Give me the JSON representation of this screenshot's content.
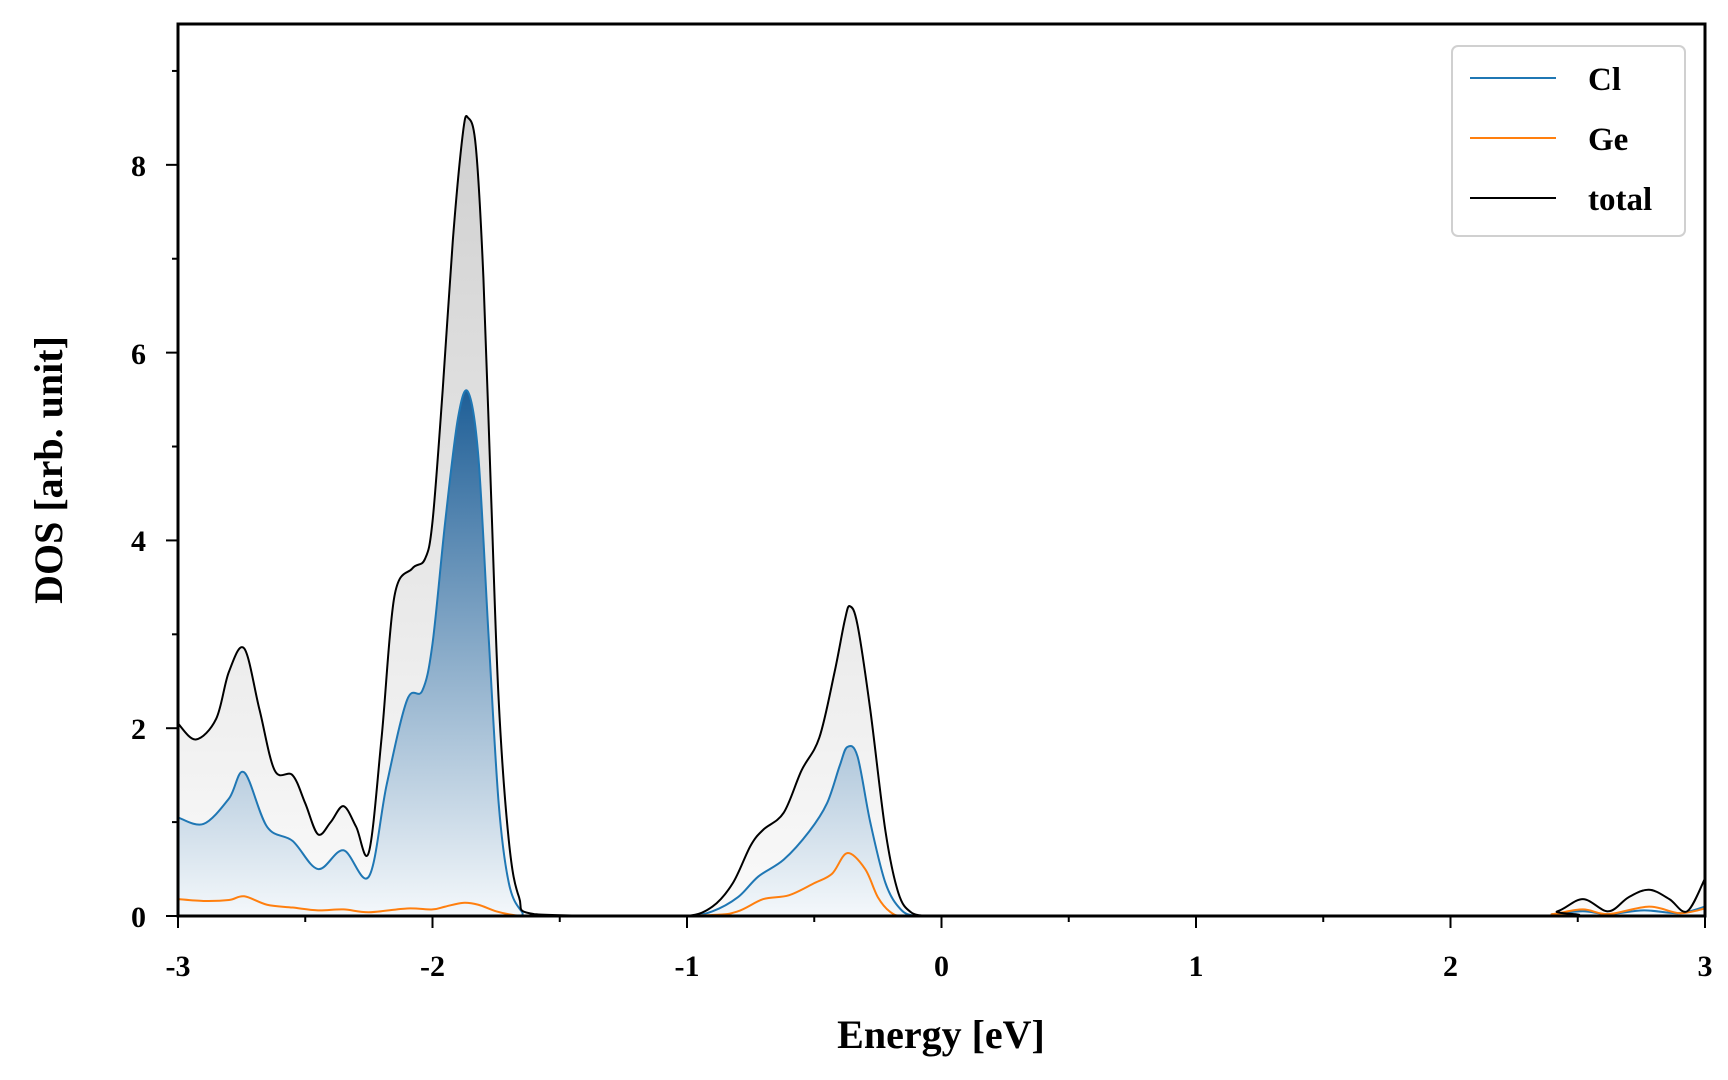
{
  "chart_data": {
    "type": "area",
    "xlabel": "Energy [eV]",
    "ylabel": "DOS [arb. unit]",
    "xlim": [
      -3,
      3
    ],
    "ylim": [
      0,
      9.5
    ],
    "x_ticks": [
      "-3",
      "-2",
      "-1",
      "0",
      "1",
      "2",
      "3"
    ],
    "y_ticks": [
      "0",
      "2",
      "4",
      "6",
      "8"
    ],
    "legend_position": "top-right",
    "grid": false,
    "series": [
      {
        "name": "Cl",
        "color": "#1f77b4",
        "fill": "blue-gradient",
        "x": [
          -3.0,
          -2.9,
          -2.8,
          -2.74,
          -2.65,
          -2.55,
          -2.45,
          -2.35,
          -2.25,
          -2.18,
          -2.1,
          -2.04,
          -2.0,
          -1.95,
          -1.9,
          -1.86,
          -1.82,
          -1.78,
          -1.74,
          -1.7,
          -1.65,
          -1.6,
          -1.2,
          -1.0,
          -0.9,
          -0.8,
          -0.72,
          -0.62,
          -0.52,
          -0.45,
          -0.4,
          -0.37,
          -0.33,
          -0.28,
          -0.22,
          -0.16,
          -0.1,
          0.0,
          2.3,
          2.4,
          2.52,
          2.62,
          2.76,
          2.9,
          3.0
        ],
        "y": [
          1.05,
          0.98,
          1.25,
          1.53,
          0.95,
          0.8,
          0.5,
          0.7,
          0.42,
          1.4,
          2.3,
          2.4,
          2.9,
          4.2,
          5.3,
          5.58,
          4.9,
          3.0,
          1.2,
          0.35,
          0.05,
          0.0,
          0.0,
          0.0,
          0.05,
          0.2,
          0.42,
          0.6,
          0.9,
          1.2,
          1.6,
          1.8,
          1.7,
          1.0,
          0.35,
          0.07,
          0.0,
          0.0,
          0.0,
          0.02,
          0.05,
          0.02,
          0.06,
          0.03,
          0.1
        ]
      },
      {
        "name": "Ge",
        "color": "#ff7f0e",
        "x": [
          -3.0,
          -2.9,
          -2.8,
          -2.74,
          -2.65,
          -2.55,
          -2.45,
          -2.35,
          -2.25,
          -2.1,
          -2.0,
          -1.95,
          -1.88,
          -1.82,
          -1.75,
          -1.68,
          -1.6,
          -1.2,
          -0.9,
          -0.8,
          -0.7,
          -0.6,
          -0.5,
          -0.43,
          -0.37,
          -0.3,
          -0.25,
          -0.2,
          -0.15,
          0.0,
          2.3,
          2.4,
          2.52,
          2.62,
          2.78,
          2.9,
          3.0
        ],
        "y": [
          0.18,
          0.16,
          0.17,
          0.21,
          0.12,
          0.09,
          0.06,
          0.07,
          0.04,
          0.08,
          0.07,
          0.1,
          0.14,
          0.12,
          0.05,
          0.01,
          0.0,
          0.0,
          0.01,
          0.05,
          0.18,
          0.22,
          0.35,
          0.45,
          0.67,
          0.5,
          0.2,
          0.04,
          0.0,
          0.0,
          0.0,
          0.02,
          0.07,
          0.02,
          0.1,
          0.03,
          0.08
        ]
      },
      {
        "name": "total",
        "color": "#000000",
        "fill": "grey-gradient",
        "x": [
          -3.0,
          -2.93,
          -2.85,
          -2.8,
          -2.74,
          -2.68,
          -2.62,
          -2.55,
          -2.5,
          -2.45,
          -2.4,
          -2.35,
          -2.3,
          -2.25,
          -2.2,
          -2.15,
          -2.08,
          -2.03,
          -2.0,
          -1.96,
          -1.92,
          -1.88,
          -1.86,
          -1.83,
          -1.8,
          -1.77,
          -1.74,
          -1.7,
          -1.66,
          -1.6,
          -1.2,
          -1.0,
          -0.9,
          -0.82,
          -0.75,
          -0.7,
          -0.62,
          -0.55,
          -0.48,
          -0.42,
          -0.38,
          -0.36,
          -0.33,
          -0.28,
          -0.22,
          -0.17,
          -0.12,
          -0.05,
          0.0,
          2.3,
          2.42,
          2.52,
          2.62,
          2.7,
          2.78,
          2.86,
          2.93,
          3.0
        ],
        "y": [
          2.05,
          1.88,
          2.1,
          2.6,
          2.85,
          2.2,
          1.55,
          1.5,
          1.2,
          0.87,
          1.0,
          1.17,
          0.95,
          0.68,
          1.9,
          3.4,
          3.7,
          3.8,
          4.2,
          5.6,
          7.2,
          8.35,
          8.5,
          8.2,
          6.8,
          4.5,
          2.3,
          0.8,
          0.2,
          0.02,
          0.0,
          0.0,
          0.1,
          0.35,
          0.75,
          0.92,
          1.1,
          1.55,
          1.9,
          2.6,
          3.15,
          3.3,
          3.1,
          2.2,
          0.9,
          0.25,
          0.04,
          0.0,
          0.0,
          0.0,
          0.05,
          0.18,
          0.05,
          0.2,
          0.28,
          0.18,
          0.05,
          0.4
        ]
      }
    ]
  }
}
